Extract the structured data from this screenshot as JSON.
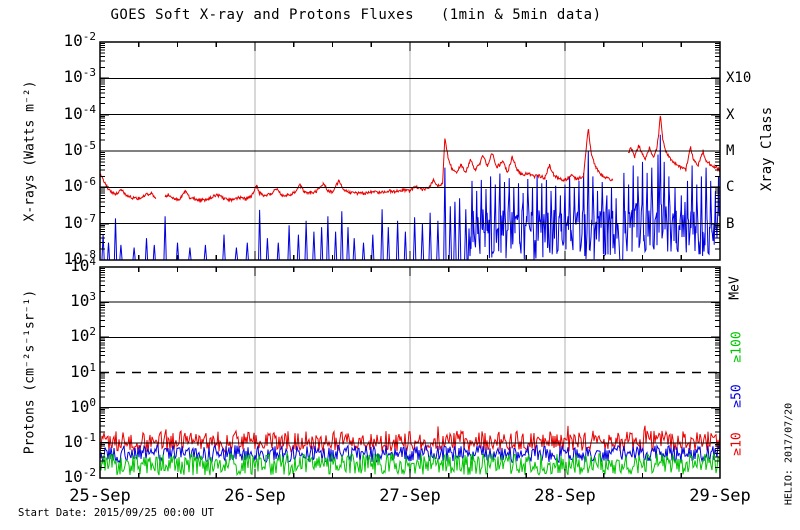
{
  "figure": {
    "title": "GOES Soft X-ray and Protons Fluxes   (1min & 5min data)",
    "start_date_label": "Start Date: 2015/09/25 00:00 UT",
    "credit": "HELIO: 2017/07/20"
  },
  "colors": {
    "red": "#e80000",
    "blue": "#0000e0",
    "green": "#00c400",
    "grid_gray": "#b0b0b0",
    "frame": "#000000"
  },
  "chart_data": [
    {
      "type": "line",
      "panel": "xray",
      "title": "GOES Soft X-ray and Protons Fluxes (1min & 5min data)",
      "ylabel": "X-rays (Watts m⁻²)",
      "ylim": [
        1e-08,
        0.01
      ],
      "yscale": "log",
      "ytick_exponents": [
        -2,
        -3,
        -4,
        -5,
        -6,
        -7,
        -8
      ],
      "grid_exponents": [
        -3,
        -4,
        -5,
        -6,
        -7
      ],
      "xlim_days": [
        0,
        4
      ],
      "x_ticklabels": [
        "25-Sep",
        "26-Sep",
        "27-Sep",
        "28-Sep",
        "29-Sep"
      ],
      "x_minor_tick_hours": 6,
      "right_axis_label": "Xray Class",
      "class_labels": [
        {
          "label": "X10",
          "exponent": -3
        },
        {
          "label": "X",
          "exponent": -4
        },
        {
          "label": "M",
          "exponent": -5
        },
        {
          "label": "C",
          "exponent": -6
        },
        {
          "label": "B",
          "exponent": -7
        }
      ],
      "series": [
        {
          "name": "xray-long-1.0-8.0A",
          "color_key": "red",
          "segments": [
            [
              [
                0.0,
                2.6e-06
              ],
              [
                0.02,
                1.6e-06
              ],
              [
                0.04,
                1.1e-06
              ],
              [
                0.07,
                7.5e-07
              ],
              [
                0.1,
                6.5e-07
              ],
              [
                0.14,
                8.5e-07
              ],
              [
                0.17,
                6e-07
              ],
              [
                0.21,
                5.2e-07
              ],
              [
                0.25,
                5e-07
              ],
              [
                0.29,
                6e-07
              ],
              [
                0.33,
                7e-07
              ],
              [
                0.36,
                5.2e-07
              ]
            ],
            [
              [
                0.42,
                5.5e-07
              ],
              [
                0.44,
                6.5e-07
              ],
              [
                0.48,
                4.6e-07
              ],
              [
                0.52,
                5e-07
              ],
              [
                0.55,
                7.5e-07
              ],
              [
                0.58,
                5.2e-07
              ],
              [
                0.63,
                4.6e-07
              ],
              [
                0.68,
                4.4e-07
              ],
              [
                0.72,
                5.5e-07
              ],
              [
                0.76,
                6.2e-07
              ],
              [
                0.8,
                4.8e-07
              ],
              [
                0.85,
                4.5e-07
              ],
              [
                0.9,
                5.2e-07
              ],
              [
                0.94,
                4.8e-07
              ],
              [
                0.98,
                6e-07
              ],
              [
                1.01,
                1.1e-06
              ],
              [
                1.03,
                7e-07
              ],
              [
                1.06,
                6e-07
              ],
              [
                1.1,
                6.5e-07
              ],
              [
                1.14,
                9e-07
              ],
              [
                1.17,
                6.2e-07
              ],
              [
                1.21,
                6e-07
              ],
              [
                1.25,
                7e-07
              ],
              [
                1.29,
                1.15e-06
              ],
              [
                1.32,
                7.5e-07
              ],
              [
                1.36,
                7e-07
              ],
              [
                1.4,
                8e-07
              ],
              [
                1.44,
                1.3e-06
              ],
              [
                1.47,
                8e-07
              ],
              [
                1.5,
                7.2e-07
              ],
              [
                1.54,
                1.5e-06
              ],
              [
                1.57,
                8.5e-07
              ],
              [
                1.6,
                7.5e-07
              ],
              [
                1.65,
                7e-07
              ],
              [
                1.7,
                6.8e-07
              ],
              [
                1.75,
                7.5e-07
              ],
              [
                1.8,
                7e-07
              ],
              [
                1.85,
                8e-07
              ],
              [
                1.9,
                7.5e-07
              ],
              [
                1.95,
                8.5e-07
              ],
              [
                2.0,
                8e-07
              ],
              [
                2.04,
                1.05e-06
              ],
              [
                2.08,
                8.5e-07
              ],
              [
                2.12,
                9.5e-07
              ],
              [
                2.15,
                1.6e-06
              ],
              [
                2.18,
                1.05e-06
              ],
              [
                2.21,
                1.3e-06
              ],
              [
                2.225,
                2.2e-05
              ],
              [
                2.245,
                7e-06
              ],
              [
                2.27,
                3.2e-06
              ],
              [
                2.3,
                2.6e-06
              ],
              [
                2.33,
                4.2e-06
              ],
              [
                2.36,
                2.6e-06
              ],
              [
                2.39,
                6e-06
              ],
              [
                2.42,
                3e-06
              ],
              [
                2.45,
                4.5e-06
              ],
              [
                2.47,
                8e-06
              ],
              [
                2.5,
                3.8e-06
              ],
              [
                2.53,
                9e-06
              ],
              [
                2.56,
                3.6e-06
              ],
              [
                2.6,
                5e-06
              ],
              [
                2.63,
                2.6e-06
              ],
              [
                2.66,
                7e-06
              ],
              [
                2.69,
                3e-06
              ],
              [
                2.72,
                2.2e-06
              ],
              [
                2.76,
                2.4e-06
              ],
              [
                2.8,
                2e-06
              ],
              [
                2.83,
                2.1e-06
              ],
              [
                2.87,
                1.8e-06
              ],
              [
                2.9,
                4e-06
              ],
              [
                2.93,
                2.1e-06
              ],
              [
                2.97,
                1.7e-06
              ],
              [
                3.0,
                1.6e-06
              ],
              [
                3.04,
                2.1e-06
              ],
              [
                3.08,
                1.7e-06
              ],
              [
                3.12,
                2e-06
              ],
              [
                3.15,
                4.2e-05
              ],
              [
                3.17,
                8e-06
              ],
              [
                3.2,
                3.5e-06
              ],
              [
                3.23,
                2.2e-06
              ],
              [
                3.27,
                1.8e-06
              ],
              [
                3.31,
                1.5e-06
              ]
            ],
            [
              [
                3.41,
                9e-06
              ],
              [
                3.425,
                1.3e-05
              ],
              [
                3.45,
                7e-06
              ],
              [
                3.475,
                1.5e-05
              ],
              [
                3.5,
                8e-06
              ],
              [
                3.52,
                6e-06
              ],
              [
                3.545,
                1.2e-05
              ],
              [
                3.57,
                7e-06
              ],
              [
                3.59,
                1.1e-05
              ],
              [
                3.605,
                3e-05
              ],
              [
                3.615,
                0.0001
              ],
              [
                3.63,
                2.2e-05
              ],
              [
                3.65,
                1e-05
              ],
              [
                3.68,
                6e-06
              ],
              [
                3.71,
                4.5e-06
              ],
              [
                3.75,
                3.5e-06
              ],
              [
                3.78,
                3e-06
              ],
              [
                3.81,
                1.3e-05
              ],
              [
                3.83,
                5.5e-06
              ],
              [
                3.86,
                4e-06
              ],
              [
                3.89,
                1e-05
              ],
              [
                3.91,
                5.5e-06
              ],
              [
                3.94,
                4.2e-06
              ],
              [
                3.97,
                3.6e-06
              ],
              [
                4.0,
                3e-06
              ]
            ]
          ]
        },
        {
          "name": "xray-short-0.5-4.0A",
          "color_key": "blue",
          "baseline": 8e-09,
          "noise_regions": [
            {
              "from": 2.38,
              "to": 3.35,
              "low": 1e-08,
              "high": 2.5e-07
            },
            {
              "from": 3.38,
              "to": 3.85,
              "low": 1.5e-08,
              "high": 4e-07
            },
            {
              "from": 3.85,
              "to": 4.0,
              "low": 1.2e-08,
              "high": 2e-07
            }
          ],
          "spikes": [
            [
              0.02,
              5e-08
            ],
            [
              0.055,
              3e-08
            ],
            [
              0.1,
              1.4e-07
            ],
            [
              0.135,
              2.6e-08
            ],
            [
              0.22,
              2.2e-08
            ],
            [
              0.3,
              4e-08
            ],
            [
              0.35,
              2.6e-08
            ],
            [
              0.42,
              1.6e-07
            ],
            [
              0.5,
              3e-08
            ],
            [
              0.58,
              2.2e-08
            ],
            [
              0.68,
              2.6e-08
            ],
            [
              0.8,
              5e-08
            ],
            [
              0.88,
              2.2e-08
            ],
            [
              0.95,
              3e-08
            ],
            [
              1.03,
              2.4e-07
            ],
            [
              1.08,
              4e-08
            ],
            [
              1.15,
              3e-08
            ],
            [
              1.22,
              9e-08
            ],
            [
              1.28,
              5e-08
            ],
            [
              1.33,
              1.2e-07
            ],
            [
              1.38,
              6e-08
            ],
            [
              1.43,
              8e-08
            ],
            [
              1.47,
              1.6e-07
            ],
            [
              1.52,
              6e-08
            ],
            [
              1.56,
              2.2e-07
            ],
            [
              1.6,
              8e-08
            ],
            [
              1.64,
              4e-08
            ],
            [
              1.7,
              3e-08
            ],
            [
              1.76,
              5e-08
            ],
            [
              1.82,
              2.5e-07
            ],
            [
              1.86,
              8e-08
            ],
            [
              1.92,
              1.2e-07
            ],
            [
              1.97,
              6e-08
            ],
            [
              2.03,
              1.5e-07
            ],
            [
              2.08,
              1e-07
            ],
            [
              2.13,
              2e-07
            ],
            [
              2.18,
              1.2e-07
            ],
            [
              2.225,
              3.5e-06
            ],
            [
              2.26,
              3e-07
            ],
            [
              2.29,
              4e-07
            ],
            [
              2.32,
              5e-07
            ],
            [
              2.36,
              2.5e-07
            ],
            [
              2.4,
              1.5e-06
            ],
            [
              2.43,
              8e-07
            ],
            [
              2.46,
              1.6e-06
            ],
            [
              2.49,
              9e-07
            ],
            [
              2.52,
              2e-06
            ],
            [
              2.55,
              1.2e-06
            ],
            [
              2.58,
              2.4e-06
            ],
            [
              2.61,
              1.4e-06
            ],
            [
              2.64,
              1.8e-06
            ],
            [
              2.67,
              1e-06
            ],
            [
              2.7,
              1.3e-06
            ],
            [
              2.73,
              7e-07
            ],
            [
              2.76,
              1.7e-06
            ],
            [
              2.79,
              1e-06
            ],
            [
              2.82,
              2.2e-06
            ],
            [
              2.85,
              1.3e-06
            ],
            [
              2.88,
              1.6e-06
            ],
            [
              2.91,
              8e-07
            ],
            [
              2.94,
              1.1e-06
            ],
            [
              2.97,
              6e-07
            ],
            [
              3.0,
              1.2e-06
            ],
            [
              3.03,
              2e-06
            ],
            [
              3.06,
              1e-06
            ],
            [
              3.09,
              1.5e-06
            ],
            [
              3.12,
              2.5e-06
            ],
            [
              3.15,
              1e-05
            ],
            [
              3.18,
              2e-06
            ],
            [
              3.21,
              8e-07
            ],
            [
              3.24,
              1.4e-06
            ],
            [
              3.27,
              6e-07
            ],
            [
              3.3,
              1e-06
            ],
            [
              3.33,
              5e-07
            ],
            [
              3.38,
              2.5e-06
            ],
            [
              3.41,
              1.2e-06
            ],
            [
              3.44,
              4e-06
            ],
            [
              3.47,
              2e-06
            ],
            [
              3.5,
              5e-06
            ],
            [
              3.53,
              2.5e-06
            ],
            [
              3.56,
              3.5e-06
            ],
            [
              3.6,
              8e-06
            ],
            [
              3.615,
              2.8e-05
            ],
            [
              3.64,
              5e-06
            ],
            [
              3.67,
              2e-06
            ],
            [
              3.71,
              1e-06
            ],
            [
              3.75,
              6e-07
            ],
            [
              3.79,
              1.5e-06
            ],
            [
              3.82,
              4e-06
            ],
            [
              3.85,
              1.2e-06
            ],
            [
              3.88,
              2e-06
            ],
            [
              3.91,
              3.5e-06
            ],
            [
              3.94,
              1.5e-06
            ],
            [
              3.97,
              8e-07
            ],
            [
              3.99,
              2e-06
            ]
          ]
        }
      ]
    },
    {
      "type": "line",
      "panel": "protons",
      "ylabel": "Protons (cm⁻²s⁻¹sr⁻¹)",
      "ylim": [
        0.01,
        10000.0
      ],
      "yscale": "log",
      "ytick_exponents": [
        4,
        3,
        2,
        1,
        0,
        -1,
        -2
      ],
      "grid_exponents": [
        3,
        2,
        0,
        -1
      ],
      "event_threshold": {
        "value": 10,
        "style": "dashed"
      },
      "xlim_days": [
        0,
        4
      ],
      "x_ticklabels": [
        "25-Sep",
        "26-Sep",
        "27-Sep",
        "28-Sep",
        "29-Sep"
      ],
      "right_axis_label": "MeV",
      "series": [
        {
          "name": "protons-ge-10MeV",
          "label": "≥10",
          "color_key": "red",
          "mean": 0.1,
          "range": [
            0.055,
            0.22
          ]
        },
        {
          "name": "protons-ge-50MeV",
          "label": "≥50",
          "color_key": "blue",
          "mean": 0.05,
          "range": [
            0.028,
            0.085
          ]
        },
        {
          "name": "protons-ge-100MeV",
          "label": "≥100",
          "color_key": "green",
          "mean": 0.022,
          "range": [
            0.012,
            0.05
          ]
        }
      ]
    }
  ]
}
